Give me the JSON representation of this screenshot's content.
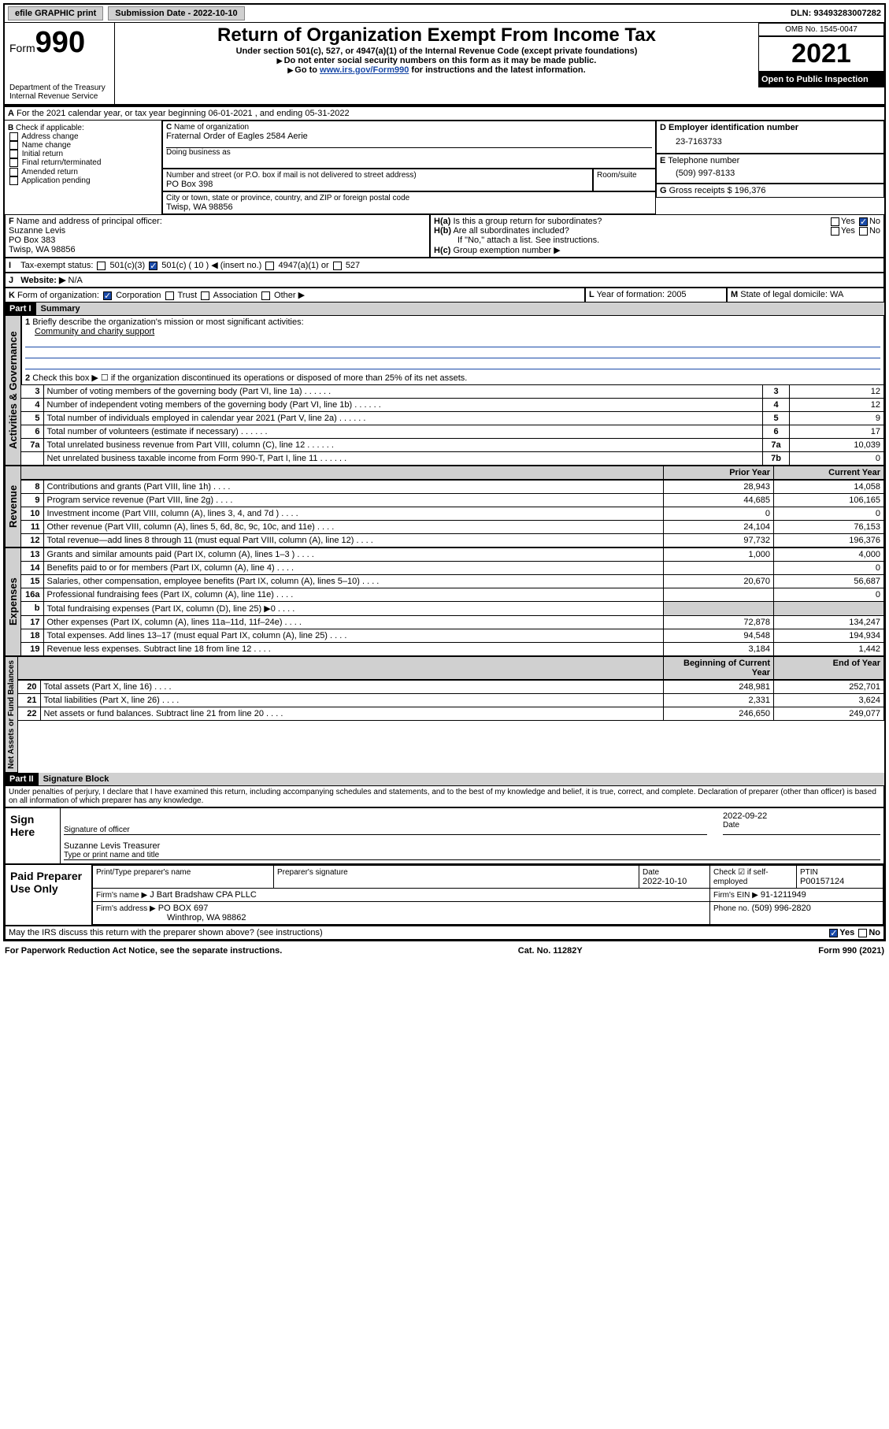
{
  "topbar": {
    "efile": "efile GRAPHIC print",
    "subdate_label": "Submission Date - 2022-10-10",
    "dln_label": "DLN: 93493283007282"
  },
  "header": {
    "form_label": "Form",
    "form_num": "990",
    "dept": "Department of the Treasury",
    "irs": "Internal Revenue Service",
    "title": "Return of Organization Exempt From Income Tax",
    "sub1": "Under section 501(c), 527, or 4947(a)(1) of the Internal Revenue Code (except private foundations)",
    "sub2": "Do not enter social security numbers on this form as it may be made public.",
    "sub3_a": "Go to ",
    "sub3_link": "www.irs.gov/Form990",
    "sub3_b": " for instructions and the latest information.",
    "omb": "OMB No. 1545-0047",
    "year": "2021",
    "open": "Open to Public Inspection"
  },
  "periodA": "For the 2021 calendar year, or tax year beginning 06-01-2021 , and ending 05-31-2022",
  "boxB": {
    "title": "Check if applicable:",
    "opts": [
      "Address change",
      "Name change",
      "Initial return",
      "Final return/terminated",
      "Amended return",
      "Application pending"
    ]
  },
  "boxC": {
    "name_label": "Name of organization",
    "name": "Fraternal Order of Eagles 2584 Aerie",
    "dba_label": "Doing business as",
    "addr_label": "Number and street (or P.O. box if mail is not delivered to street address)",
    "room_label": "Room/suite",
    "addr": "PO Box 398",
    "city_label": "City or town, state or province, country, and ZIP or foreign postal code",
    "city": "Twisp, WA  98856"
  },
  "boxD": {
    "label": "Employer identification number",
    "val": "23-7163733"
  },
  "boxE": {
    "label": "Telephone number",
    "val": "(509) 997-8133"
  },
  "boxG": {
    "label": "Gross receipts $",
    "val": "196,376"
  },
  "boxF": {
    "label": "Name and address of principal officer:",
    "name": "Suzanne Levis",
    "addr": "PO Box 383",
    "city": "Twisp, WA  98856"
  },
  "boxH": {
    "a": "Is this a group return for subordinates?",
    "b": "Are all subordinates included?",
    "note": "If \"No,\" attach a list. See instructions.",
    "c": "Group exemption number ▶"
  },
  "taxexempt": "Tax-exempt status:",
  "te_c3": "501(c)(3)",
  "te_c": "501(c) ( 10 ) ◀ (insert no.)",
  "te_4947": "4947(a)(1) or",
  "te_527": "527",
  "website_label": "Website: ▶",
  "website": "N/A",
  "formK": "Form of organization:",
  "formK_opts": [
    "Corporation",
    "Trust",
    "Association",
    "Other ▶"
  ],
  "boxL": {
    "label": "Year of formation:",
    "val": "2005"
  },
  "boxM": {
    "label": "State of legal domicile:",
    "val": "WA"
  },
  "part1": {
    "title": "Part I",
    "sub": "Summary"
  },
  "summary": {
    "q1": "Briefly describe the organization's mission or most significant activities:",
    "q1a": "Community and charity support",
    "q2": "Check this box ▶ ☐ if the organization discontinued its operations or disposed of more than 25% of its net assets.",
    "rows_gov": [
      {
        "n": "3",
        "t": "Number of voting members of the governing body (Part VI, line 1a)",
        "box": "3",
        "v": "12"
      },
      {
        "n": "4",
        "t": "Number of independent voting members of the governing body (Part VI, line 1b)",
        "box": "4",
        "v": "12"
      },
      {
        "n": "5",
        "t": "Total number of individuals employed in calendar year 2021 (Part V, line 2a)",
        "box": "5",
        "v": "9"
      },
      {
        "n": "6",
        "t": "Total number of volunteers (estimate if necessary)",
        "box": "6",
        "v": "17"
      },
      {
        "n": "7a",
        "t": "Total unrelated business revenue from Part VIII, column (C), line 12",
        "box": "7a",
        "v": "10,039"
      },
      {
        "n": "",
        "t": "Net unrelated business taxable income from Form 990-T, Part I, line 11",
        "box": "7b",
        "v": "0"
      }
    ],
    "col_prior": "Prior Year",
    "col_current": "Current Year",
    "col_boy": "Beginning of Current Year",
    "col_eoy": "End of Year",
    "rows_rev": [
      {
        "n": "8",
        "t": "Contributions and grants (Part VIII, line 1h)",
        "p": "28,943",
        "c": "14,058"
      },
      {
        "n": "9",
        "t": "Program service revenue (Part VIII, line 2g)",
        "p": "44,685",
        "c": "106,165"
      },
      {
        "n": "10",
        "t": "Investment income (Part VIII, column (A), lines 3, 4, and 7d )",
        "p": "0",
        "c": "0"
      },
      {
        "n": "11",
        "t": "Other revenue (Part VIII, column (A), lines 5, 6d, 8c, 9c, 10c, and 11e)",
        "p": "24,104",
        "c": "76,153"
      },
      {
        "n": "12",
        "t": "Total revenue—add lines 8 through 11 (must equal Part VIII, column (A), line 12)",
        "p": "97,732",
        "c": "196,376"
      }
    ],
    "rows_exp": [
      {
        "n": "13",
        "t": "Grants and similar amounts paid (Part IX, column (A), lines 1–3 )",
        "p": "1,000",
        "c": "4,000"
      },
      {
        "n": "14",
        "t": "Benefits paid to or for members (Part IX, column (A), line 4)",
        "p": "",
        "c": "0"
      },
      {
        "n": "15",
        "t": "Salaries, other compensation, employee benefits (Part IX, column (A), lines 5–10)",
        "p": "20,670",
        "c": "56,687"
      },
      {
        "n": "16a",
        "t": "Professional fundraising fees (Part IX, column (A), line 11e)",
        "p": "",
        "c": "0"
      },
      {
        "n": "b",
        "t": "Total fundraising expenses (Part IX, column (D), line 25) ▶0",
        "p": "",
        "c": "",
        "shade": true
      },
      {
        "n": "17",
        "t": "Other expenses (Part IX, column (A), lines 11a–11d, 11f–24e)",
        "p": "72,878",
        "c": "134,247"
      },
      {
        "n": "18",
        "t": "Total expenses. Add lines 13–17 (must equal Part IX, column (A), line 25)",
        "p": "94,548",
        "c": "194,934"
      },
      {
        "n": "19",
        "t": "Revenue less expenses. Subtract line 18 from line 12",
        "p": "3,184",
        "c": "1,442"
      }
    ],
    "rows_net": [
      {
        "n": "20",
        "t": "Total assets (Part X, line 16)",
        "p": "248,981",
        "c": "252,701"
      },
      {
        "n": "21",
        "t": "Total liabilities (Part X, line 26)",
        "p": "2,331",
        "c": "3,624"
      },
      {
        "n": "22",
        "t": "Net assets or fund balances. Subtract line 21 from line 20",
        "p": "246,650",
        "c": "249,077"
      }
    ],
    "side_gov": "Activities & Governance",
    "side_rev": "Revenue",
    "side_exp": "Expenses",
    "side_net": "Net Assets or Fund Balances"
  },
  "part2": {
    "title": "Part II",
    "sub": "Signature Block"
  },
  "perjury": "Under penalties of perjury, I declare that I have examined this return, including accompanying schedules and statements, and to the best of my knowledge and belief, it is true, correct, and complete. Declaration of preparer (other than officer) is based on all information of which preparer has any knowledge.",
  "sign": {
    "here": "Sign Here",
    "sig_label": "Signature of officer",
    "date_label": "Date",
    "date": "2022-09-22",
    "name": "Suzanne Levis  Treasurer",
    "name_label": "Type or print name and title"
  },
  "preparer": {
    "title": "Paid Preparer Use Only",
    "h_name": "Print/Type preparer's name",
    "h_sig": "Preparer's signature",
    "h_date": "Date",
    "date": "2022-10-10",
    "h_check": "Check ☑ if self-employed",
    "h_ptin": "PTIN",
    "ptin": "P00157124",
    "firm_label": "Firm's name ▶",
    "firm": "J Bart Bradshaw CPA PLLC",
    "ein_label": "Firm's EIN ▶",
    "ein": "91-1211949",
    "addr_label": "Firm's address ▶",
    "addr": "PO BOX 697",
    "city": "Winthrop, WA  98862",
    "phone_label": "Phone no.",
    "phone": "(509) 996-2820"
  },
  "discuss": "May the IRS discuss this return with the preparer shown above? (see instructions)",
  "footer": {
    "left": "For Paperwork Reduction Act Notice, see the separate instructions.",
    "mid": "Cat. No. 11282Y",
    "right": "Form 990 (2021)"
  },
  "yes": "Yes",
  "no": "No"
}
